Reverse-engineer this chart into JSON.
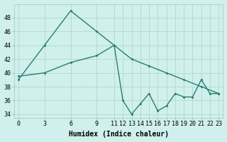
{
  "xlabel": "Humidex (Indice chaleur)",
  "line1_x": [
    0,
    3,
    6,
    9,
    11,
    12,
    13,
    14,
    15,
    16,
    17,
    18,
    19,
    20,
    21,
    22,
    23
  ],
  "line1_y": [
    39,
    44,
    49,
    46,
    44,
    36,
    34,
    35.5,
    37,
    34.5,
    35.2,
    37,
    36.5,
    36.5,
    39,
    37,
    37
  ],
  "line2_x": [
    0,
    3,
    6,
    9,
    11,
    13,
    15,
    17,
    19,
    21,
    23
  ],
  "line2_y": [
    39.5,
    40,
    41.5,
    42.5,
    44,
    42,
    41,
    40,
    39,
    38,
    37
  ],
  "line_color": "#2e7d6e",
  "bg_color": "#cff0ec",
  "grid_color": "#b8dbd6",
  "ylim": [
    33.5,
    50
  ],
  "yticks": [
    34,
    36,
    38,
    40,
    42,
    44,
    46,
    48
  ],
  "xlim": [
    -0.5,
    23.5
  ],
  "xticks": [
    0,
    3,
    6,
    9,
    11,
    12,
    13,
    14,
    15,
    16,
    17,
    18,
    19,
    20,
    21,
    22,
    23
  ],
  "xlabel_fontsize": 7,
  "tick_fontsize": 6
}
